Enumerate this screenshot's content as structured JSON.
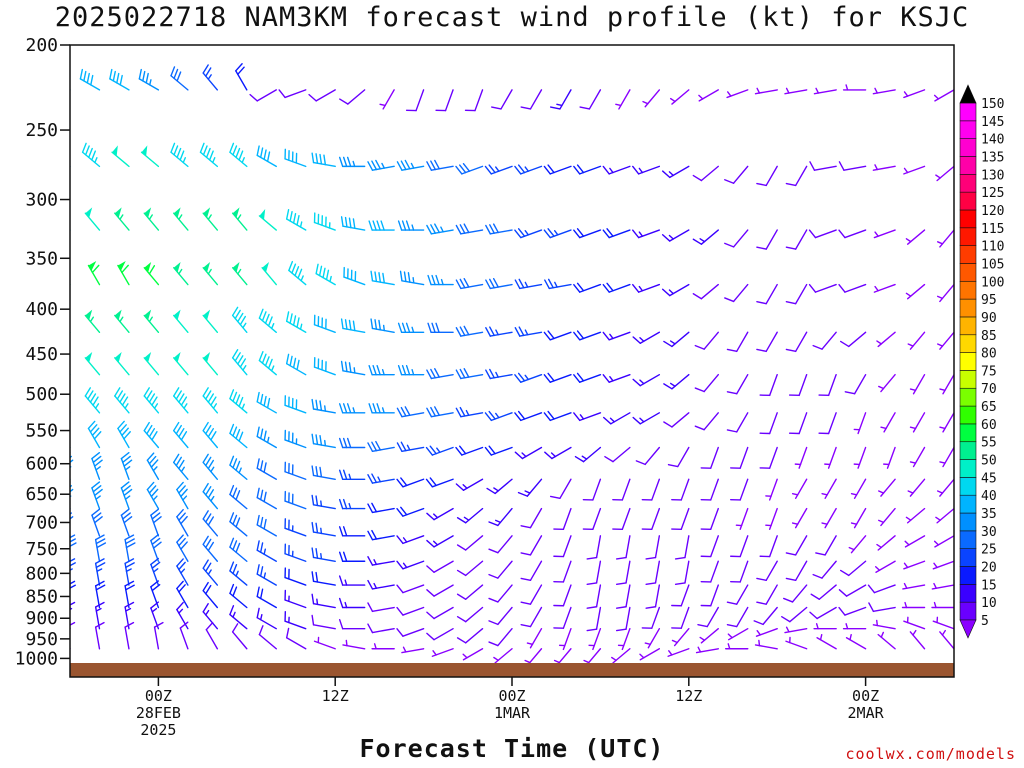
{
  "page": {
    "title": "2025022718 NAM3KM forecast wind profile (kt) for KSJC",
    "credit": "coolwx.com/models"
  },
  "chart_data": {
    "type": "wind-barb-time-height",
    "title": "2025022718 NAM3KM forecast wind profile (kt) for KSJC",
    "xlabel": "Forecast Time (UTC)",
    "ylabel": "",
    "y_axis": {
      "unit": "hPa",
      "range": [
        1050,
        200
      ],
      "ticks": [
        200,
        250,
        300,
        350,
        400,
        450,
        500,
        550,
        600,
        650,
        700,
        750,
        800,
        850,
        900,
        950,
        1000
      ]
    },
    "x_axis": {
      "start": "2025-02-27 18Z",
      "range_hours": [
        0,
        60
      ],
      "ticks": [
        {
          "hour": 6,
          "lines": [
            "00Z",
            "28FEB",
            "2025"
          ]
        },
        {
          "hour": 18,
          "lines": [
            "12Z"
          ]
        },
        {
          "hour": 30,
          "lines": [
            "00Z",
            "1MAR"
          ]
        },
        {
          "hour": 42,
          "lines": [
            "12Z"
          ]
        },
        {
          "hour": 54,
          "lines": [
            "00Z",
            "2MAR"
          ]
        }
      ]
    },
    "colorbar": {
      "unit": "kt",
      "levels": [
        5,
        10,
        15,
        20,
        25,
        30,
        35,
        40,
        45,
        50,
        55,
        60,
        65,
        70,
        75,
        80,
        85,
        90,
        95,
        100,
        105,
        110,
        115,
        120,
        125,
        130,
        135,
        140,
        145,
        150
      ],
      "colors": [
        "#8a00ff",
        "#6a00ff",
        "#3a00ff",
        "#0a1aff",
        "#0a44ff",
        "#0a6aff",
        "#0090ff",
        "#00b4ff",
        "#00d8f0",
        "#00f0c8",
        "#00f090",
        "#00ff40",
        "#30ff00",
        "#7aff00",
        "#c8ff00",
        "#ffff00",
        "#ffd800",
        "#ffb400",
        "#ff9000",
        "#ff7400",
        "#ff5800",
        "#ff3c00",
        "#ff1800",
        "#ff0000",
        "#ff0044",
        "#ff0078",
        "#ff00a8",
        "#ff00d0",
        "#ff00f0",
        "#ff00ff"
      ]
    },
    "barb_columns_hours": [
      0,
      2,
      4,
      6,
      8,
      10,
      12,
      14,
      16,
      18,
      20,
      22,
      24,
      26,
      28,
      30,
      32,
      34,
      36,
      38,
      40,
      42,
      44,
      46,
      48,
      50,
      52,
      54,
      56,
      58,
      60
    ],
    "levels_hPa": [
      225,
      275,
      325,
      375,
      425,
      475,
      525,
      575,
      625,
      675,
      725,
      775,
      825,
      875,
      925,
      975
    ],
    "wind_kt": [
      [
        35,
        40,
        40,
        35,
        30,
        25,
        20,
        10,
        10,
        10,
        10,
        5,
        10,
        10,
        10,
        10,
        10,
        15,
        10,
        5,
        5,
        5,
        5,
        5,
        5,
        5,
        5,
        5,
        5,
        5,
        5
      ],
      [
        40,
        45,
        50,
        50,
        45,
        45,
        45,
        40,
        40,
        40,
        35,
        35,
        35,
        30,
        30,
        25,
        25,
        20,
        20,
        15,
        15,
        15,
        10,
        10,
        10,
        10,
        10,
        10,
        5,
        5,
        5
      ],
      [
        45,
        50,
        55,
        55,
        55,
        55,
        55,
        50,
        45,
        45,
        40,
        40,
        35,
        35,
        30,
        30,
        25,
        25,
        20,
        20,
        15,
        15,
        15,
        10,
        10,
        10,
        10,
        10,
        5,
        5,
        5
      ],
      [
        55,
        60,
        60,
        60,
        55,
        55,
        55,
        50,
        45,
        45,
        40,
        40,
        35,
        35,
        30,
        30,
        25,
        25,
        20,
        20,
        15,
        15,
        10,
        10,
        10,
        10,
        10,
        10,
        5,
        5,
        5
      ],
      [
        55,
        55,
        55,
        55,
        50,
        50,
        45,
        45,
        45,
        40,
        40,
        35,
        35,
        30,
        30,
        25,
        25,
        20,
        20,
        15,
        15,
        15,
        10,
        10,
        10,
        10,
        10,
        10,
        5,
        5,
        5
      ],
      [
        45,
        50,
        50,
        50,
        50,
        50,
        45,
        45,
        40,
        40,
        35,
        35,
        35,
        30,
        30,
        25,
        25,
        20,
        20,
        15,
        15,
        15,
        10,
        10,
        10,
        10,
        10,
        10,
        5,
        5,
        5
      ],
      [
        40,
        45,
        45,
        45,
        45,
        45,
        45,
        40,
        40,
        35,
        35,
        35,
        30,
        30,
        25,
        25,
        20,
        20,
        15,
        15,
        15,
        10,
        10,
        10,
        10,
        10,
        10,
        5,
        5,
        5,
        5
      ],
      [
        35,
        40,
        40,
        40,
        40,
        40,
        40,
        35,
        35,
        35,
        30,
        30,
        25,
        25,
        20,
        20,
        15,
        15,
        15,
        10,
        10,
        10,
        10,
        10,
        10,
        5,
        5,
        5,
        5,
        5,
        5
      ],
      [
        35,
        35,
        35,
        35,
        35,
        35,
        35,
        30,
        30,
        30,
        25,
        25,
        20,
        20,
        15,
        15,
        15,
        10,
        10,
        10,
        10,
        10,
        10,
        10,
        5,
        5,
        5,
        5,
        5,
        5,
        5
      ],
      [
        35,
        35,
        35,
        35,
        35,
        35,
        30,
        30,
        30,
        25,
        25,
        20,
        20,
        15,
        15,
        15,
        10,
        10,
        10,
        10,
        10,
        10,
        10,
        5,
        5,
        5,
        5,
        5,
        5,
        5,
        5
      ],
      [
        30,
        30,
        30,
        30,
        30,
        30,
        30,
        30,
        25,
        25,
        20,
        20,
        15,
        15,
        10,
        10,
        10,
        10,
        10,
        10,
        10,
        10,
        10,
        10,
        10,
        10,
        10,
        5,
        5,
        5,
        5
      ],
      [
        30,
        30,
        30,
        30,
        30,
        30,
        30,
        25,
        25,
        25,
        20,
        15,
        15,
        10,
        10,
        10,
        10,
        10,
        10,
        10,
        10,
        10,
        10,
        10,
        10,
        10,
        10,
        10,
        5,
        5,
        5
      ],
      [
        25,
        25,
        25,
        25,
        25,
        25,
        25,
        25,
        20,
        20,
        15,
        15,
        10,
        10,
        10,
        10,
        10,
        10,
        10,
        10,
        10,
        10,
        10,
        10,
        10,
        10,
        10,
        10,
        10,
        5,
        5
      ],
      [
        20,
        20,
        20,
        20,
        20,
        20,
        20,
        20,
        15,
        15,
        15,
        10,
        10,
        10,
        10,
        10,
        10,
        10,
        10,
        10,
        10,
        10,
        10,
        10,
        10,
        10,
        10,
        10,
        10,
        5,
        5
      ],
      [
        15,
        15,
        15,
        15,
        15,
        15,
        15,
        15,
        15,
        10,
        10,
        10,
        10,
        10,
        10,
        10,
        5,
        5,
        5,
        5,
        5,
        5,
        5,
        5,
        5,
        5,
        5,
        5,
        5,
        5,
        5
      ],
      [
        10,
        10,
        10,
        10,
        10,
        10,
        10,
        10,
        10,
        5,
        5,
        5,
        5,
        5,
        5,
        5,
        5,
        5,
        5,
        5,
        5,
        5,
        5,
        5,
        5,
        5,
        5,
        5,
        5,
        5,
        5
      ]
    ],
    "wind_dir_deg": [
      [
        300,
        300,
        300,
        300,
        310,
        320,
        330,
        240,
        250,
        240,
        230,
        210,
        200,
        200,
        200,
        210,
        210,
        210,
        210,
        210,
        220,
        230,
        240,
        250,
        260,
        260,
        260,
        270,
        260,
        250,
        240
      ],
      [
        310,
        310,
        310,
        310,
        310,
        310,
        310,
        300,
        290,
        280,
        270,
        260,
        260,
        260,
        250,
        250,
        250,
        250,
        250,
        250,
        250,
        240,
        230,
        220,
        210,
        210,
        260,
        260,
        260,
        250,
        230
      ],
      [
        320,
        320,
        320,
        320,
        320,
        320,
        320,
        310,
        300,
        290,
        280,
        270,
        270,
        260,
        260,
        260,
        250,
        250,
        250,
        250,
        250,
        240,
        230,
        220,
        210,
        210,
        250,
        250,
        250,
        230,
        220
      ],
      [
        330,
        330,
        330,
        320,
        320,
        320,
        320,
        320,
        310,
        300,
        290,
        280,
        280,
        270,
        260,
        260,
        260,
        260,
        250,
        250,
        250,
        240,
        230,
        220,
        210,
        210,
        250,
        250,
        250,
        230,
        220
      ],
      [
        320,
        320,
        320,
        320,
        320,
        320,
        320,
        310,
        300,
        290,
        280,
        280,
        270,
        270,
        260,
        260,
        260,
        250,
        250,
        250,
        240,
        230,
        220,
        210,
        210,
        210,
        220,
        230,
        230,
        220,
        220
      ],
      [
        320,
        320,
        320,
        320,
        320,
        320,
        320,
        310,
        300,
        290,
        280,
        270,
        270,
        260,
        260,
        260,
        250,
        250,
        250,
        250,
        240,
        230,
        220,
        210,
        200,
        200,
        200,
        210,
        220,
        210,
        210
      ],
      [
        320,
        320,
        320,
        320,
        320,
        320,
        310,
        300,
        290,
        280,
        270,
        270,
        260,
        260,
        260,
        250,
        250,
        250,
        250,
        240,
        240,
        230,
        220,
        210,
        200,
        200,
        200,
        200,
        210,
        210,
        210
      ],
      [
        330,
        330,
        330,
        320,
        320,
        320,
        310,
        300,
        290,
        280,
        270,
        260,
        260,
        250,
        250,
        250,
        240,
        240,
        230,
        230,
        220,
        210,
        200,
        200,
        200,
        200,
        200,
        200,
        200,
        210,
        210
      ],
      [
        340,
        340,
        340,
        330,
        320,
        320,
        310,
        300,
        290,
        280,
        270,
        260,
        250,
        250,
        240,
        230,
        220,
        210,
        200,
        200,
        200,
        200,
        200,
        200,
        200,
        210,
        210,
        210,
        220,
        220,
        220
      ],
      [
        340,
        340,
        340,
        330,
        330,
        320,
        310,
        300,
        290,
        280,
        270,
        260,
        250,
        240,
        230,
        220,
        210,
        200,
        200,
        200,
        200,
        200,
        200,
        200,
        200,
        210,
        210,
        210,
        220,
        230,
        230
      ],
      [
        340,
        340,
        340,
        340,
        330,
        320,
        310,
        300,
        290,
        280,
        270,
        260,
        250,
        240,
        230,
        220,
        210,
        200,
        190,
        190,
        190,
        190,
        200,
        200,
        200,
        210,
        210,
        220,
        230,
        240,
        240
      ],
      [
        350,
        350,
        350,
        340,
        330,
        320,
        310,
        300,
        290,
        280,
        270,
        260,
        250,
        240,
        230,
        220,
        210,
        200,
        190,
        190,
        190,
        190,
        200,
        200,
        210,
        210,
        220,
        230,
        240,
        250,
        250
      ],
      [
        350,
        350,
        350,
        340,
        330,
        320,
        310,
        300,
        290,
        280,
        270,
        260,
        250,
        240,
        230,
        220,
        210,
        200,
        190,
        190,
        190,
        200,
        200,
        210,
        210,
        220,
        230,
        240,
        250,
        260,
        260
      ],
      [
        350,
        350,
        350,
        340,
        330,
        320,
        310,
        300,
        290,
        280,
        270,
        260,
        250,
        240,
        230,
        220,
        210,
        200,
        190,
        190,
        200,
        200,
        210,
        210,
        220,
        230,
        240,
        250,
        260,
        270,
        270
      ],
      [
        350,
        350,
        350,
        340,
        330,
        320,
        310,
        300,
        290,
        280,
        270,
        260,
        250,
        240,
        230,
        220,
        210,
        200,
        200,
        200,
        210,
        220,
        230,
        240,
        250,
        260,
        270,
        270,
        280,
        290,
        290
      ],
      [
        350,
        350,
        350,
        350,
        340,
        330,
        320,
        310,
        300,
        290,
        280,
        270,
        260,
        250,
        240,
        230,
        220,
        220,
        220,
        230,
        240,
        250,
        260,
        270,
        280,
        290,
        300,
        300,
        310,
        320,
        320
      ]
    ]
  }
}
